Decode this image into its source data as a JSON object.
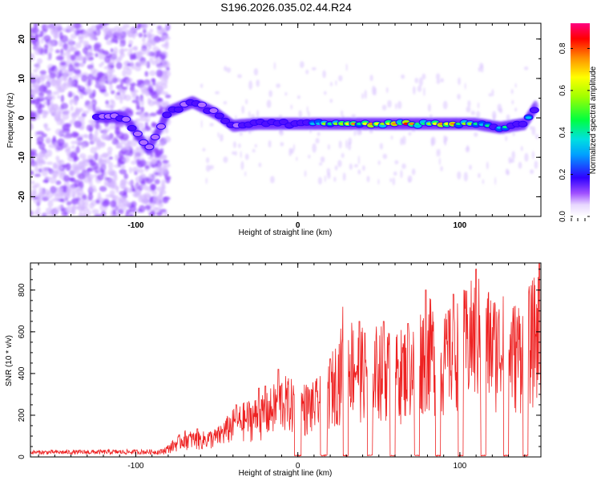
{
  "title": "S196.2026.035.02.44.R24",
  "colors": {
    "snr_line": "#ee2222",
    "axis": "#000000",
    "bg": "#ffffff"
  },
  "chart_data": [
    {
      "type": "heatmap",
      "name": "spectrogram",
      "xlabel": "Height of straight line (km)",
      "ylabel": "Frequency (Hz)",
      "xlim": [
        -165,
        150
      ],
      "ylim": [
        -25,
        24
      ],
      "x_ticks": [
        -100,
        0,
        100
      ],
      "y_ticks": [
        -20,
        -10,
        0,
        10,
        20
      ],
      "y_tick_labels": [
        "-20",
        "-10",
        "0",
        "10",
        "20"
      ],
      "x_tick_labels": [
        "-100",
        "0",
        "100"
      ],
      "ridge": [
        {
          "x": -124,
          "f": 0.3,
          "amp": 0.3
        },
        {
          "x": -107,
          "f": 0.2,
          "amp": 0.3
        },
        {
          "x": -92,
          "f": -8.0,
          "amp": 0.25
        },
        {
          "x": -80,
          "f": 1.5,
          "amp": 0.3
        },
        {
          "x": -65,
          "f": 4.0,
          "amp": 0.3
        },
        {
          "x": -50,
          "f": 1.0,
          "amp": 0.35
        },
        {
          "x": -40,
          "f": -2.0,
          "amp": 0.3
        },
        {
          "x": -25,
          "f": -1.5,
          "amp": 0.35
        },
        {
          "x": -10,
          "f": -1.5,
          "amp": 0.4
        },
        {
          "x": 5,
          "f": -1.5,
          "amp": 0.45
        },
        {
          "x": 20,
          "f": -1.5,
          "amp": 0.6
        },
        {
          "x": 35,
          "f": -1.5,
          "amp": 0.7
        },
        {
          "x": 50,
          "f": -1.5,
          "amp": 0.75
        },
        {
          "x": 65,
          "f": -1.5,
          "amp": 0.8
        },
        {
          "x": 80,
          "f": -1.5,
          "amp": 0.8
        },
        {
          "x": 95,
          "f": -1.5,
          "amp": 0.75
        },
        {
          "x": 110,
          "f": -1.5,
          "amp": 0.55
        },
        {
          "x": 125,
          "f": -2.5,
          "amp": 0.45
        },
        {
          "x": 140,
          "f": -1.5,
          "amp": 0.4
        },
        {
          "x": 147,
          "f": 3.0,
          "amp": 0.35
        }
      ]
    },
    {
      "type": "colorbar",
      "name": "amplitude-colorbar",
      "label": "Normalized spectral amplitude",
      "range": [
        0,
        0.92
      ],
      "ticks": [
        0.0,
        0.2,
        0.4,
        0.6,
        0.8
      ],
      "tick_labels": [
        "0.0",
        "0.2",
        "0.4",
        "0.6",
        "0.8"
      ]
    },
    {
      "type": "line",
      "name": "snr",
      "xlabel": "Height of straight line (km)",
      "ylabel": "SNR (10 * v/v)",
      "xlim": [
        -165,
        150
      ],
      "ylim": [
        0,
        930
      ],
      "x_ticks": [
        -100,
        0,
        100
      ],
      "x_tick_labels": [
        "-100",
        "0",
        "100"
      ],
      "y_ticks": [
        0,
        200,
        400,
        600,
        800
      ],
      "y_tick_labels": [
        "0",
        "200",
        "400",
        "600",
        "800"
      ],
      "envelope": [
        {
          "x": -165,
          "y": 30
        },
        {
          "x": -85,
          "y": 35
        },
        {
          "x": -80,
          "y": 60
        },
        {
          "x": -70,
          "y": 130
        },
        {
          "x": -60,
          "y": 120
        },
        {
          "x": -50,
          "y": 140
        },
        {
          "x": -40,
          "y": 230
        },
        {
          "x": -30,
          "y": 280
        },
        {
          "x": -20,
          "y": 300
        },
        {
          "x": -10,
          "y": 400
        },
        {
          "x": 0,
          "y": 360
        },
        {
          "x": 10,
          "y": 360
        },
        {
          "x": 20,
          "y": 480
        },
        {
          "x": 30,
          "y": 700
        },
        {
          "x": 40,
          "y": 620
        },
        {
          "x": 50,
          "y": 640
        },
        {
          "x": 60,
          "y": 600
        },
        {
          "x": 70,
          "y": 650
        },
        {
          "x": 80,
          "y": 780
        },
        {
          "x": 90,
          "y": 680
        },
        {
          "x": 100,
          "y": 780
        },
        {
          "x": 110,
          "y": 880
        },
        {
          "x": 120,
          "y": 800
        },
        {
          "x": 130,
          "y": 740
        },
        {
          "x": 140,
          "y": 780
        },
        {
          "x": 150,
          "y": 930
        }
      ],
      "gaps": [
        [
          -2,
          2
        ],
        [
          14,
          18
        ],
        [
          28,
          31
        ],
        [
          43,
          46
        ],
        [
          57,
          60
        ],
        [
          72,
          75
        ],
        [
          85,
          88
        ],
        [
          99,
          102
        ],
        [
          113,
          116
        ],
        [
          127,
          130
        ],
        [
          139,
          142
        ]
      ],
      "spikes": [
        {
          "x": -62,
          "y": 135
        },
        {
          "x": -38,
          "y": 250
        },
        {
          "x": -24,
          "y": 330
        },
        {
          "x": -20,
          "y": 340
        },
        {
          "x": -12,
          "y": 420
        },
        {
          "x": 20,
          "y": 470
        },
        {
          "x": 28,
          "y": 720
        },
        {
          "x": 38,
          "y": 650
        },
        {
          "x": 53,
          "y": 650
        },
        {
          "x": 68,
          "y": 640
        },
        {
          "x": 79,
          "y": 800
        },
        {
          "x": 93,
          "y": 700
        },
        {
          "x": 96,
          "y": 780
        },
        {
          "x": 110,
          "y": 900
        },
        {
          "x": 115,
          "y": 780
        },
        {
          "x": 127,
          "y": 770
        },
        {
          "x": 149,
          "y": 930
        }
      ]
    }
  ]
}
